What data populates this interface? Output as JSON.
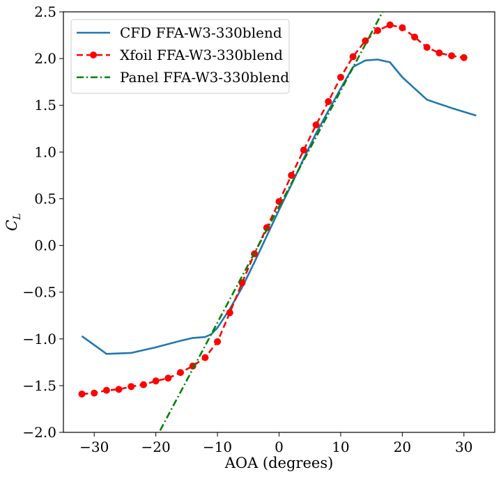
{
  "chart_data": {
    "type": "line",
    "xlabel": "AOA (degrees)",
    "ylabel": "C_L",
    "ylabel_main": "C",
    "ylabel_sub": "L",
    "xlim": [
      -35,
      35
    ],
    "ylim": [
      -2.0,
      2.5
    ],
    "xticks": [
      -30,
      -20,
      -10,
      0,
      10,
      20,
      30
    ],
    "xtick_labels": [
      "−30",
      "−20",
      "−10",
      "0",
      "10",
      "20",
      "30"
    ],
    "yticks": [
      -2.0,
      -1.5,
      -1.0,
      -0.5,
      0.0,
      0.5,
      1.0,
      1.5,
      2.0,
      2.5
    ],
    "ytick_labels": [
      "−2.0",
      "−1.5",
      "−1.0",
      "−0.5",
      "0.0",
      "0.5",
      "1.0",
      "1.5",
      "2.0",
      "2.5"
    ],
    "grid": false,
    "legend_position": "top-left",
    "series": [
      {
        "name": "CFD FFA-W3-330blend",
        "color": "#1f77b4",
        "style": "solid",
        "marker": false,
        "x": [
          -32,
          -28,
          -24,
          -20,
          -16,
          -14,
          -12,
          -11,
          -10,
          -8,
          -6,
          -4,
          -2,
          0,
          2,
          4,
          6,
          8,
          10,
          12,
          14,
          16,
          18,
          20,
          24,
          28,
          32
        ],
        "y": [
          -0.97,
          -1.16,
          -1.15,
          -1.09,
          -1.02,
          -0.99,
          -0.98,
          -0.95,
          -0.88,
          -0.68,
          -0.45,
          -0.18,
          0.1,
          0.38,
          0.65,
          0.93,
          1.2,
          1.44,
          1.68,
          1.91,
          1.98,
          1.99,
          1.96,
          1.8,
          1.56,
          1.47,
          1.39
        ]
      },
      {
        "name": "Xfoil FFA-W3-330blend",
        "color": "#ff0000",
        "style": "dashed",
        "marker": true,
        "x": [
          -32,
          -30,
          -28,
          -26,
          -24,
          -22,
          -20,
          -18,
          -16,
          -14,
          -12,
          -10,
          -8,
          -6,
          -4,
          -2,
          0,
          2,
          4,
          6,
          8,
          10,
          12,
          14,
          16,
          18,
          20,
          22,
          24,
          26,
          28,
          30
        ],
        "y": [
          -1.59,
          -1.58,
          -1.55,
          -1.54,
          -1.51,
          -1.49,
          -1.45,
          -1.42,
          -1.36,
          -1.29,
          -1.2,
          -1.03,
          -0.72,
          -0.4,
          -0.09,
          0.19,
          0.47,
          0.75,
          1.02,
          1.29,
          1.54,
          1.8,
          2.02,
          2.19,
          2.3,
          2.36,
          2.33,
          2.23,
          2.12,
          2.06,
          2.03,
          2.01
        ]
      },
      {
        "name": "Panel FFA-W3-330blend",
        "color": "#008000",
        "style": "dashdot",
        "marker": false,
        "x": [
          -19.3,
          16.8
        ],
        "y": [
          -1.98,
          2.5
        ]
      }
    ]
  }
}
